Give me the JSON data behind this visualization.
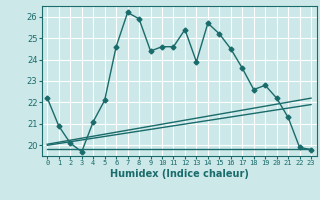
{
  "xlabel": "Humidex (Indice chaleur)",
  "bg_color": "#cce8e8",
  "grid_color": "#ffffff",
  "line_color": "#1a6b6b",
  "xlim": [
    -0.5,
    23.5
  ],
  "ylim": [
    19.5,
    26.5
  ],
  "yticks": [
    20,
    21,
    22,
    23,
    24,
    25,
    26
  ],
  "xticks": [
    0,
    1,
    2,
    3,
    4,
    5,
    6,
    7,
    8,
    9,
    10,
    11,
    12,
    13,
    14,
    15,
    16,
    17,
    18,
    19,
    20,
    21,
    22,
    23
  ],
  "series1": [
    22.2,
    20.9,
    20.1,
    19.7,
    21.1,
    22.1,
    24.6,
    26.2,
    25.9,
    24.4,
    24.6,
    24.6,
    25.4,
    23.9,
    25.7,
    25.2,
    24.5,
    23.6,
    22.6,
    22.8,
    22.2,
    21.3,
    19.9,
    19.8
  ],
  "series2_x": [
    0,
    23
  ],
  "series2_y": [
    20.05,
    22.2
  ],
  "series3_x": [
    0,
    23
  ],
  "series3_y": [
    20.0,
    21.9
  ],
  "series4_x": [
    0,
    23
  ],
  "series4_y": [
    19.85,
    19.85
  ],
  "marker": "D",
  "markersize": 2.5,
  "linewidth": 1.0
}
